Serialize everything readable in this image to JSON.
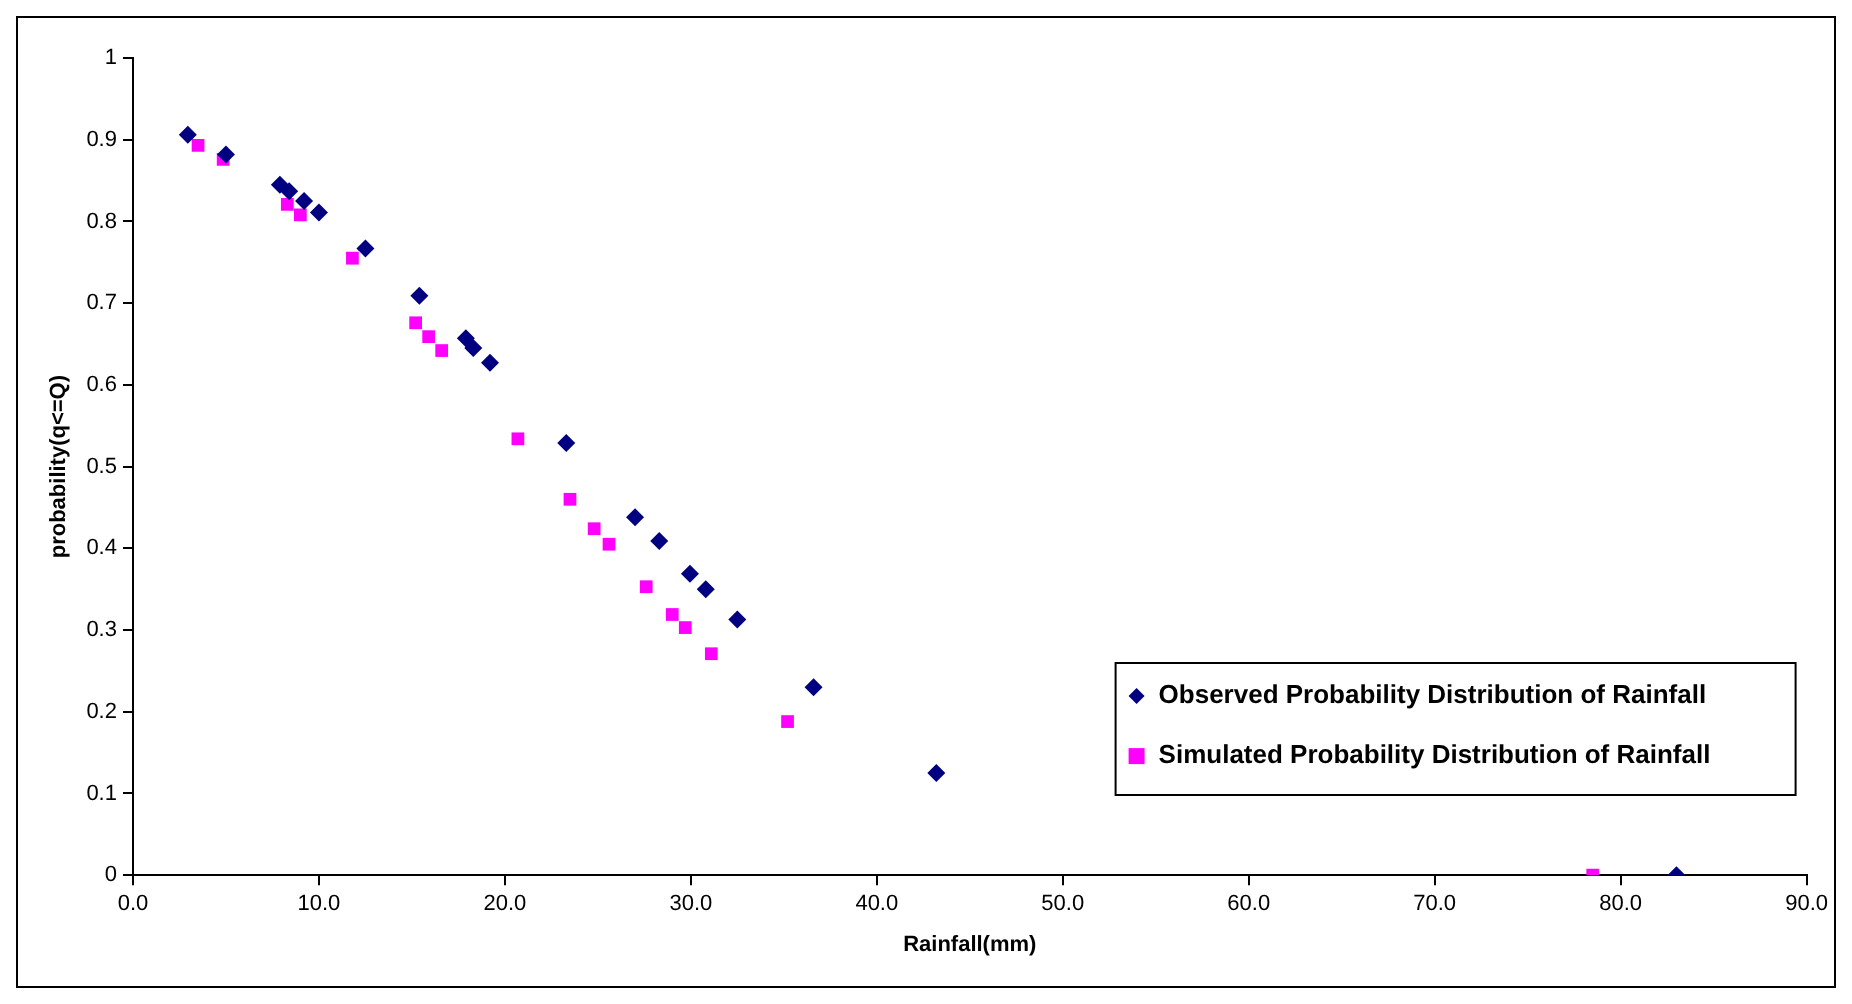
{
  "chart_data": {
    "type": "scatter",
    "xlabel": "Rainfall(mm)",
    "ylabel": "probability(q<=Q)",
    "xlim": [
      0,
      90
    ],
    "xticks": [
      {
        "value": 0,
        "label": "0.0"
      },
      {
        "value": 10,
        "label": "10.0"
      },
      {
        "value": 20,
        "label": "20.0"
      },
      {
        "value": 30,
        "label": "30.0"
      },
      {
        "value": 40,
        "label": "40.0"
      },
      {
        "value": 50,
        "label": "50.0"
      },
      {
        "value": 60,
        "label": "60.0"
      },
      {
        "value": 70,
        "label": "70.0"
      },
      {
        "value": 80,
        "label": "80.0"
      },
      {
        "value": 90,
        "label": "90.0"
      }
    ],
    "ylim": [
      0,
      1
    ],
    "yticks": [
      0,
      0.1,
      0.2,
      0.3,
      0.4,
      0.5,
      0.6,
      0.7,
      0.8,
      0.9,
      1
    ],
    "grid": false,
    "legend": "right",
    "series": [
      {
        "name": "Observed Probability Distribution of Rainfall",
        "color": "#000080",
        "marker": "diamond",
        "x": [
          2.95,
          5.0,
          7.9,
          8.4,
          9.2,
          10.0,
          12.5,
          15.4,
          17.9,
          18.3,
          19.2,
          23.3,
          27.0,
          28.3,
          29.95,
          30.8,
          32.5,
          36.6,
          43.2,
          83.0
        ],
        "values": [
          0.906,
          0.882,
          0.845,
          0.837,
          0.825,
          0.811,
          0.767,
          0.709,
          0.657,
          0.645,
          0.627,
          0.529,
          0.438,
          0.409,
          0.369,
          0.35,
          0.313,
          0.23,
          0.125,
          0
        ]
      },
      {
        "name": "Simulated Probability Distribution of Rainfall",
        "color": "#ff00ff",
        "marker": "square",
        "x": [
          3.5,
          4.85,
          8.3,
          9.0,
          11.8,
          15.2,
          15.9,
          16.6,
          20.7,
          23.5,
          24.8,
          25.6,
          27.6,
          29.0,
          29.7,
          31.1,
          35.2,
          78.5
        ],
        "values": [
          0.893,
          0.876,
          0.821,
          0.808,
          0.755,
          0.676,
          0.659,
          0.642,
          0.534,
          0.46,
          0.424,
          0.405,
          0.353,
          0.319,
          0.303,
          0.271,
          0.188,
          0
        ]
      }
    ]
  }
}
